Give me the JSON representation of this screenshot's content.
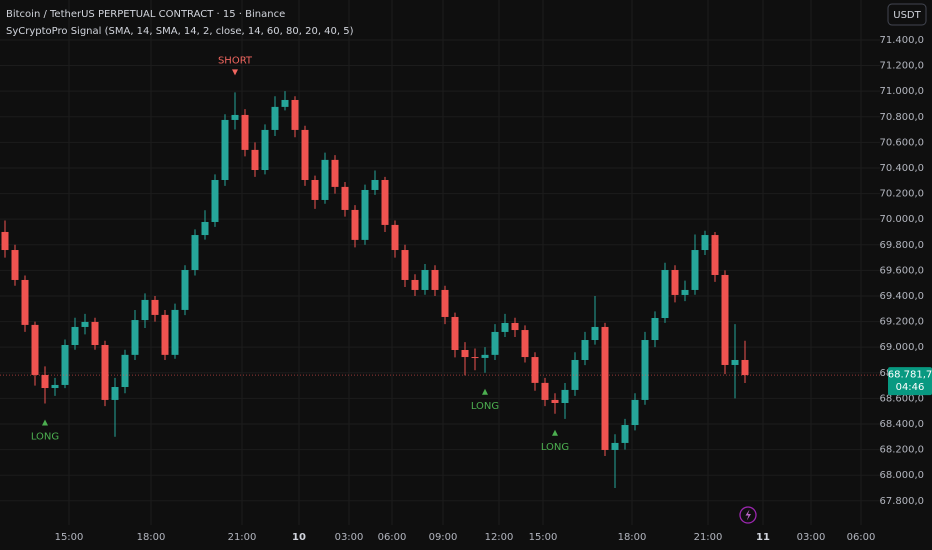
{
  "chart_data": {
    "type": "candlestick",
    "title": "Bitcoin / TetherUS PERPETUAL CONTRACT · 15 · Binance",
    "subtitle": "SyCryptoPro Signal (SMA, 14, SMA, 14, 2, close, 14, 60, 80, 20, 40, 5)",
    "currency": "USDT",
    "up_color": "#26a69a",
    "down_color": "#ef5350",
    "grid": true,
    "x": [
      0.5,
      1.5,
      2.5,
      3.5,
      4.5,
      5.5,
      6.5,
      7.5,
      8.5,
      9.5,
      10.5,
      11.5,
      12.5,
      13.5,
      14.5,
      15.5,
      16.5,
      17.5,
      18.5,
      19.5,
      20.5,
      21.5,
      22.5,
      23.5,
      24.5,
      25.5,
      26.5,
      27.5,
      28.5,
      29.5,
      30.5,
      31.5,
      32.5,
      33.5,
      34.5,
      35.5,
      36.5,
      37.5,
      38.5,
      39.5,
      40.5,
      41.5,
      42.5,
      43.5,
      44.5,
      45.5,
      46.5,
      47.5,
      48.5,
      49.5,
      50.5,
      51.5,
      52.5,
      53.5,
      54.5,
      55.5,
      56.5,
      57.5,
      58.5,
      59.5,
      60.5,
      61.5,
      62.5,
      63.5,
      64.5,
      65.5,
      66.5,
      67.5,
      68.5,
      69.5,
      70.5,
      71.5,
      72.5,
      73.5,
      74.5
    ],
    "open": [
      69900,
      69759,
      69525,
      69174,
      68783,
      68681,
      68705,
      69017,
      69158,
      69197,
      69017,
      68588,
      68689,
      68940,
      69212,
      69369,
      69252,
      68940,
      69291,
      69603,
      69876,
      69978,
      70306,
      70775,
      70814,
      70541,
      70384,
      70697,
      70877,
      70931,
      70697,
      70306,
      70150,
      70463,
      70252,
      70072,
      69838,
      70228,
      70306,
      69955,
      69759,
      69525,
      69447,
      69603,
      69447,
      69236,
      68978,
      68923,
      68916,
      68940,
      69119,
      69189,
      69134,
      68923,
      68721,
      68588,
      68564,
      68666,
      68900,
      69056,
      69158,
      68197,
      68252,
      68392,
      68588,
      69056,
      69228,
      69603,
      69408,
      69447,
      69759,
      69876,
      69564,
      68861,
      68900
    ],
    "high": [
      69990,
      69800,
      69560,
      69200,
      68850,
      68760,
      69060,
      69230,
      69260,
      69230,
      69050,
      68760,
      68980,
      69290,
      69420,
      69400,
      69290,
      69340,
      69640,
      69920,
      70070,
      70350,
      70820,
      70990,
      70860,
      70600,
      70740,
      70960,
      71000,
      70960,
      70730,
      70340,
      70520,
      70500,
      70290,
      70110,
      70270,
      70380,
      70330,
      69990,
      69800,
      69570,
      69650,
      69640,
      69480,
      69270,
      69040,
      68990,
      69000,
      69180,
      69260,
      69230,
      69170,
      68960,
      68760,
      68640,
      68720,
      68960,
      69120,
      69400,
      69190,
      68320,
      68440,
      68640,
      69120,
      69280,
      69660,
      69640,
      69520,
      69880,
      69910,
      69900,
      69600,
      69180,
      69050
    ],
    "low": [
      69700,
      69480,
      69120,
      68700,
      68560,
      68620,
      68680,
      68980,
      69100,
      68980,
      68540,
      68300,
      68640,
      68900,
      69150,
      69200,
      68900,
      68910,
      69250,
      69560,
      69840,
      69940,
      70260,
      70700,
      70490,
      70330,
      70350,
      70650,
      70850,
      70640,
      70260,
      70080,
      70120,
      70200,
      70020,
      69780,
      69800,
      70190,
      69900,
      69700,
      69470,
      69400,
      69410,
      69400,
      69180,
      68920,
      68780,
      68820,
      68800,
      68900,
      69080,
      69080,
      68880,
      68660,
      68540,
      68480,
      68440,
      68620,
      68860,
      69020,
      68150,
      67900,
      68200,
      68350,
      68550,
      69000,
      69190,
      69350,
      69360,
      69410,
      69720,
      69510,
      68790,
      68600,
      68720
    ],
    "close": [
      69759,
      69525,
      69174,
      68783,
      68681,
      68705,
      69017,
      69158,
      69197,
      69017,
      68588,
      68689,
      68940,
      69212,
      69369,
      69252,
      68940,
      69291,
      69603,
      69876,
      69978,
      70306,
      70775,
      70814,
      70541,
      70384,
      70697,
      70877,
      70931,
      70697,
      70306,
      70150,
      70463,
      70252,
      70072,
      69838,
      70228,
      70306,
      69955,
      69759,
      69525,
      69447,
      69603,
      69447,
      69236,
      68978,
      68923,
      68916,
      68940,
      69119,
      69189,
      69134,
      68923,
      68721,
      68588,
      68564,
      68666,
      68900,
      69056,
      69158,
      68197,
      68252,
      68392,
      68588,
      69056,
      69228,
      69603,
      69408,
      69447,
      69759,
      69876,
      69564,
      68861,
      68900,
      68782
    ],
    "signals": [
      {
        "text": "SHORT",
        "x": 23.5,
        "side": "above"
      },
      {
        "text": "LONG",
        "x": 4.5,
        "side": "below"
      },
      {
        "text": "LONG",
        "x": 48.5,
        "side": "below"
      },
      {
        "text": "LONG",
        "x": 55.5,
        "side": "below"
      }
    ],
    "last_price": {
      "value": 68781.7,
      "label": "68.781,7"
    },
    "countdown": "04:46",
    "xlim": [
      0,
      88
    ],
    "xticks": [
      {
        "value": 6.9,
        "label": "15:00"
      },
      {
        "value": 15.1,
        "label": "18:00"
      },
      {
        "value": 24.2,
        "label": "21:00"
      },
      {
        "value": 29.9,
        "label": "10"
      },
      {
        "value": 34.9,
        "label": "03:00"
      },
      {
        "value": 39.2,
        "label": "06:00"
      },
      {
        "value": 44.3,
        "label": "09:00"
      },
      {
        "value": 49.9,
        "label": "12:00"
      },
      {
        "value": 54.3,
        "label": "15:00"
      },
      {
        "value": 63.2,
        "label": "18:00"
      },
      {
        "value": 70.8,
        "label": "21:00"
      },
      {
        "value": 76.3,
        "label": "11"
      },
      {
        "value": 81.1,
        "label": "03:00"
      },
      {
        "value": 86.1,
        "label": "06:00"
      }
    ],
    "ylim": [
      67611,
      71712
    ],
    "yticks": [
      {
        "value": 71400,
        "label": "71.400,0"
      },
      {
        "value": 71200,
        "label": "71.200,0"
      },
      {
        "value": 71000,
        "label": "71.000,0"
      },
      {
        "value": 70800,
        "label": "70.800,0"
      },
      {
        "value": 70600,
        "label": "70.600,0"
      },
      {
        "value": 70400,
        "label": "70.400,0"
      },
      {
        "value": 70200,
        "label": "70.200,0"
      },
      {
        "value": 70000,
        "label": "70.000,0"
      },
      {
        "value": 69800,
        "label": "69.800,0"
      },
      {
        "value": 69600,
        "label": "69.600,0"
      },
      {
        "value": 69400,
        "label": "69.400,0"
      },
      {
        "value": 69200,
        "label": "69.200,0"
      },
      {
        "value": 69000,
        "label": "69.000,0"
      },
      {
        "value": 68800,
        "label": "68.800,0"
      },
      {
        "value": 68600,
        "label": "68.600,0"
      },
      {
        "value": 68400,
        "label": "68.400,0"
      },
      {
        "value": 68200,
        "label": "68.200,0"
      },
      {
        "value": 68000,
        "label": "68.000,0"
      },
      {
        "value": 67800,
        "label": "67.800,0"
      }
    ]
  }
}
